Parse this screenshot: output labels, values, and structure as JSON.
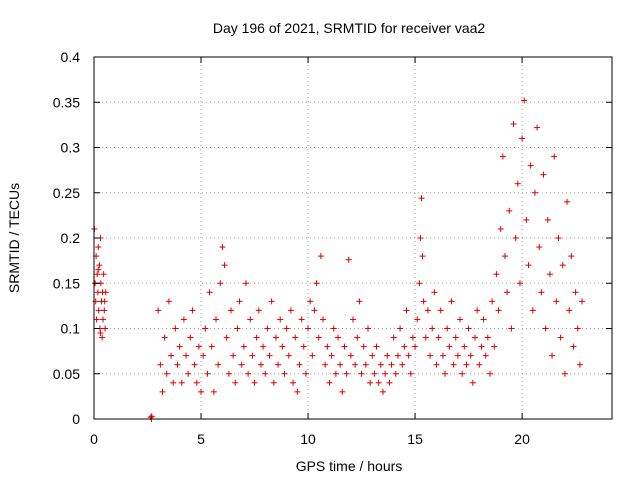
{
  "chart_data": {
    "type": "scatter",
    "title": "Day 196 of 2021, SRMTID for receiver vaa2",
    "xlabel": "GPS time / hours",
    "ylabel": "SRMTID / TECUs",
    "xlim": [
      0,
      24.2
    ],
    "ylim": [
      0,
      0.4
    ],
    "xticks": [
      0,
      5,
      10,
      15,
      20
    ],
    "xtick_labels": [
      "0",
      "5",
      "10",
      "15",
      "20"
    ],
    "yticks": [
      0,
      0.05,
      0.1,
      0.15,
      0.2,
      0.25,
      0.3,
      0.35,
      0.4
    ],
    "ytick_labels": [
      "0",
      "0.05",
      "0.1",
      "0.15",
      "0.2",
      "0.25",
      "0.3",
      "0.35",
      "0.4"
    ],
    "grid": true,
    "marker": "plus",
    "color": "#e00000",
    "series": [
      {
        "name": "SRMTID",
        "points": [
          [
            0.02,
            0.21
          ],
          [
            0.05,
            0.15
          ],
          [
            0.08,
            0.13
          ],
          [
            0.1,
            0.18
          ],
          [
            0.12,
            0.11
          ],
          [
            0.15,
            0.16
          ],
          [
            0.18,
            0.14
          ],
          [
            0.2,
            0.19
          ],
          [
            0.22,
            0.12
          ],
          [
            0.25,
            0.17
          ],
          [
            0.28,
            0.1
          ],
          [
            0.3,
            0.2
          ],
          [
            0.32,
            0.15
          ],
          [
            0.35,
            0.13
          ],
          [
            0.38,
            0.09
          ],
          [
            0.4,
            0.14
          ],
          [
            0.42,
            0.11
          ],
          [
            0.45,
            0.16
          ],
          [
            0.48,
            0.12
          ],
          [
            0.5,
            0.13
          ],
          [
            0.52,
            0.1
          ],
          [
            0.55,
            0.14
          ],
          [
            0.3,
            0.095
          ],
          [
            0.2,
            0.165
          ],
          [
            2.65,
            0.002
          ],
          [
            2.68,
            0.0
          ],
          [
            2.7,
            0.003
          ],
          [
            3.0,
            0.12
          ],
          [
            3.1,
            0.06
          ],
          [
            3.2,
            0.03
          ],
          [
            3.3,
            0.09
          ],
          [
            3.4,
            0.05
          ],
          [
            3.5,
            0.13
          ],
          [
            3.6,
            0.07
          ],
          [
            3.7,
            0.04
          ],
          [
            3.8,
            0.1
          ],
          [
            3.9,
            0.06
          ],
          [
            4.0,
            0.08
          ],
          [
            4.1,
            0.04
          ],
          [
            4.2,
            0.11
          ],
          [
            4.3,
            0.07
          ],
          [
            4.4,
            0.05
          ],
          [
            4.5,
            0.09
          ],
          [
            4.6,
            0.12
          ],
          [
            4.7,
            0.06
          ],
          [
            4.8,
            0.04
          ],
          [
            4.9,
            0.08
          ],
          [
            5.0,
            0.03
          ],
          [
            5.1,
            0.07
          ],
          [
            5.2,
            0.1
          ],
          [
            5.3,
            0.05
          ],
          [
            5.4,
            0.14
          ],
          [
            5.5,
            0.08
          ],
          [
            5.6,
            0.03
          ],
          [
            5.7,
            0.11
          ],
          [
            5.8,
            0.06
          ],
          [
            5.9,
            0.15
          ],
          [
            6.0,
            0.19
          ],
          [
            6.1,
            0.17
          ],
          [
            6.2,
            0.09
          ],
          [
            6.3,
            0.05
          ],
          [
            6.4,
            0.12
          ],
          [
            6.5,
            0.07
          ],
          [
            6.6,
            0.04
          ],
          [
            6.7,
            0.1
          ],
          [
            6.8,
            0.13
          ],
          [
            6.9,
            0.06
          ],
          [
            7.0,
            0.08
          ],
          [
            7.1,
            0.15
          ],
          [
            7.2,
            0.05
          ],
          [
            7.3,
            0.11
          ],
          [
            7.4,
            0.07
          ],
          [
            7.5,
            0.04
          ],
          [
            7.6,
            0.09
          ],
          [
            7.7,
            0.12
          ],
          [
            7.8,
            0.06
          ],
          [
            7.9,
            0.08
          ],
          [
            8.0,
            0.05
          ],
          [
            8.1,
            0.1
          ],
          [
            8.2,
            0.07
          ],
          [
            8.3,
            0.13
          ],
          [
            8.4,
            0.04
          ],
          [
            8.5,
            0.09
          ],
          [
            8.6,
            0.06
          ],
          [
            8.7,
            0.11
          ],
          [
            8.8,
            0.08
          ],
          [
            8.9,
            0.05
          ],
          [
            9.0,
            0.1
          ],
          [
            9.1,
            0.07
          ],
          [
            9.2,
            0.12
          ],
          [
            9.3,
            0.04
          ],
          [
            9.4,
            0.09
          ],
          [
            9.5,
            0.03
          ],
          [
            9.6,
            0.06
          ],
          [
            9.7,
            0.11
          ],
          [
            9.8,
            0.08
          ],
          [
            9.9,
            0.05
          ],
          [
            10.0,
            0.1
          ],
          [
            10.1,
            0.13
          ],
          [
            10.2,
            0.07
          ],
          [
            10.3,
            0.12
          ],
          [
            10.4,
            0.15
          ],
          [
            10.5,
            0.09
          ],
          [
            10.6,
            0.18
          ],
          [
            10.7,
            0.11
          ],
          [
            10.8,
            0.06
          ],
          [
            10.9,
            0.08
          ],
          [
            11.0,
            0.04
          ],
          [
            11.1,
            0.07
          ],
          [
            11.2,
            0.1
          ],
          [
            11.3,
            0.05
          ],
          [
            11.4,
            0.09
          ],
          [
            11.5,
            0.06
          ],
          [
            11.6,
            0.03
          ],
          [
            11.7,
            0.08
          ],
          [
            11.8,
            0.05
          ],
          [
            11.9,
            0.176
          ],
          [
            12.0,
            0.07
          ],
          [
            12.1,
            0.11
          ],
          [
            12.2,
            0.06
          ],
          [
            12.3,
            0.09
          ],
          [
            12.4,
            0.13
          ],
          [
            12.5,
            0.05
          ],
          [
            12.6,
            0.08
          ],
          [
            12.7,
            0.06
          ],
          [
            12.8,
            0.1
          ],
          [
            12.9,
            0.04
          ],
          [
            13.0,
            0.07
          ],
          [
            13.1,
            0.05
          ],
          [
            13.2,
            0.08
          ],
          [
            13.3,
            0.04
          ],
          [
            13.4,
            0.06
          ],
          [
            13.5,
            0.03
          ],
          [
            13.6,
            0.05
          ],
          [
            13.7,
            0.07
          ],
          [
            13.8,
            0.04
          ],
          [
            13.9,
            0.06
          ],
          [
            14.0,
            0.09
          ],
          [
            14.1,
            0.05
          ],
          [
            14.2,
            0.07
          ],
          [
            14.3,
            0.1
          ],
          [
            14.4,
            0.06
          ],
          [
            14.5,
            0.08
          ],
          [
            14.6,
            0.12
          ],
          [
            14.7,
            0.07
          ],
          [
            14.8,
            0.05
          ],
          [
            14.9,
            0.09
          ],
          [
            15.0,
            0.08
          ],
          [
            15.1,
            0.11
          ],
          [
            15.2,
            0.15
          ],
          [
            15.25,
            0.2
          ],
          [
            15.3,
            0.244
          ],
          [
            15.35,
            0.18
          ],
          [
            15.4,
            0.13
          ],
          [
            15.5,
            0.09
          ],
          [
            15.6,
            0.12
          ],
          [
            15.7,
            0.07
          ],
          [
            15.8,
            0.1
          ],
          [
            15.9,
            0.14
          ],
          [
            16.0,
            0.06
          ],
          [
            16.1,
            0.09
          ],
          [
            16.2,
            0.12
          ],
          [
            16.3,
            0.07
          ],
          [
            16.4,
            0.05
          ],
          [
            16.5,
            0.1
          ],
          [
            16.6,
            0.08
          ],
          [
            16.7,
            0.13
          ],
          [
            16.8,
            0.06
          ],
          [
            16.9,
            0.09
          ],
          [
            17.0,
            0.07
          ],
          [
            17.1,
            0.11
          ],
          [
            17.2,
            0.05
          ],
          [
            17.3,
            0.08
          ],
          [
            17.4,
            0.06
          ],
          [
            17.5,
            0.1
          ],
          [
            17.6,
            0.07
          ],
          [
            17.7,
            0.04
          ],
          [
            17.8,
            0.09
          ],
          [
            17.9,
            0.12
          ],
          [
            18.0,
            0.06
          ],
          [
            18.1,
            0.08
          ],
          [
            18.2,
            0.11
          ],
          [
            18.3,
            0.07
          ],
          [
            18.4,
            0.09
          ],
          [
            18.5,
            0.05
          ],
          [
            18.6,
            0.13
          ],
          [
            18.7,
            0.08
          ],
          [
            18.8,
            0.16
          ],
          [
            18.9,
            0.12
          ],
          [
            19.0,
            0.21
          ],
          [
            19.1,
            0.29
          ],
          [
            19.2,
            0.18
          ],
          [
            19.3,
            0.14
          ],
          [
            19.4,
            0.23
          ],
          [
            19.5,
            0.1
          ],
          [
            19.6,
            0.326
          ],
          [
            19.7,
            0.2
          ],
          [
            19.8,
            0.26
          ],
          [
            19.9,
            0.15
          ],
          [
            20.0,
            0.31
          ],
          [
            20.1,
            0.352
          ],
          [
            20.2,
            0.22
          ],
          [
            20.3,
            0.17
          ],
          [
            20.4,
            0.28
          ],
          [
            20.5,
            0.12
          ],
          [
            20.6,
            0.25
          ],
          [
            20.7,
            0.322
          ],
          [
            20.8,
            0.19
          ],
          [
            20.9,
            0.14
          ],
          [
            21.0,
            0.27
          ],
          [
            21.1,
            0.1
          ],
          [
            21.2,
            0.22
          ],
          [
            21.3,
            0.16
          ],
          [
            21.4,
            0.07
          ],
          [
            21.5,
            0.29
          ],
          [
            21.6,
            0.13
          ],
          [
            21.7,
            0.2
          ],
          [
            21.8,
            0.09
          ],
          [
            21.9,
            0.17
          ],
          [
            22.0,
            0.05
          ],
          [
            22.1,
            0.24
          ],
          [
            22.2,
            0.12
          ],
          [
            22.3,
            0.18
          ],
          [
            22.4,
            0.08
          ],
          [
            22.5,
            0.14
          ],
          [
            22.6,
            0.1
          ],
          [
            22.7,
            0.06
          ],
          [
            22.8,
            0.13
          ]
        ]
      }
    ]
  }
}
